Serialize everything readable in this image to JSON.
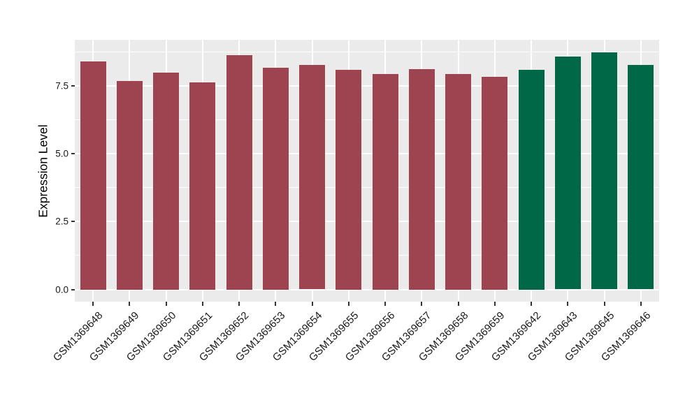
{
  "chart_data": {
    "type": "bar",
    "title": "",
    "xlabel": "",
    "ylabel": "Expression Level",
    "categories": [
      "GSM1369648",
      "GSM1369649",
      "GSM1369650",
      "GSM1369651",
      "GSM1369652",
      "GSM1369653",
      "GSM1369654",
      "GSM1369655",
      "GSM1369656",
      "GSM1369657",
      "GSM1369658",
      "GSM1369659",
      "GSM1369642",
      "GSM1369643",
      "GSM1369645",
      "GSM1369646"
    ],
    "values": [
      8.4,
      7.68,
      7.99,
      7.63,
      8.63,
      8.17,
      8.27,
      8.09,
      7.94,
      8.13,
      7.95,
      7.83,
      8.09,
      8.58,
      8.73,
      8.27
    ],
    "bar_colors": [
      "#9D4450",
      "#9D4450",
      "#9D4450",
      "#9D4450",
      "#9D4450",
      "#9D4450",
      "#9D4450",
      "#9D4450",
      "#9D4450",
      "#9D4450",
      "#9D4450",
      "#9D4450",
      "#006847",
      "#006847",
      "#006847",
      "#006847"
    ],
    "group_palette": {
      "maroon_group": "#9D4450",
      "green_group": "#006847"
    },
    "yticks": [
      0,
      2.5,
      5,
      7.5
    ],
    "ytick_labels": [
      "0.0",
      "2.5",
      "5.0",
      "7.5"
    ],
    "minor_yticks": [
      1.25,
      3.75,
      6.25,
      8.75
    ],
    "ylim": [
      -0.45,
      9.2
    ],
    "grid": "major and minor horizontal white gridlines, vertical white gridline at each category center",
    "legend_position": "none",
    "panel_bg": "#EBEBEB",
    "grid_color": "#FFFFFF",
    "axis_text_color": "#1A1A1A",
    "tick_mark_color": "#333333"
  }
}
